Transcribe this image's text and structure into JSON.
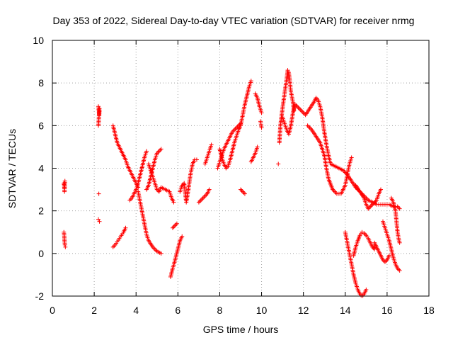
{
  "chart_data": {
    "type": "scatter",
    "title": "Day 353 of 2022, Sidereal Day-to-day VTEC variation (SDTVAR) for receiver nrmg",
    "xlabel": "GPS time / hours",
    "ylabel": "SDTVAR / TECUs",
    "xlim": [
      0,
      18
    ],
    "ylim": [
      -2,
      10
    ],
    "xticks": [
      "0",
      "2",
      "4",
      "6",
      "8",
      "10",
      "12",
      "14",
      "16",
      "18"
    ],
    "yticks": [
      "-2",
      "0",
      "2",
      "4",
      "6",
      "8",
      "10"
    ],
    "grid": true,
    "marker": "+",
    "color": "#ff0000",
    "series": [
      {
        "name": "SDTVAR",
        "points": [
          [
            0.55,
            3.3
          ],
          [
            0.57,
            3.1
          ],
          [
            0.58,
            2.9
          ],
          [
            0.6,
            3.4
          ],
          [
            0.55,
            1.0
          ],
          [
            0.57,
            0.8
          ],
          [
            0.58,
            0.6
          ],
          [
            0.6,
            0.4
          ],
          [
            0.62,
            0.3
          ],
          [
            2.2,
            6.9
          ],
          [
            2.22,
            6.7
          ],
          [
            2.24,
            6.5
          ],
          [
            2.25,
            6.8
          ],
          [
            2.2,
            6.0
          ],
          [
            2.22,
            2.8
          ],
          [
            2.2,
            1.6
          ],
          [
            2.25,
            1.5
          ],
          [
            2.9,
            6.0
          ],
          [
            2.95,
            5.8
          ],
          [
            3.0,
            5.6
          ],
          [
            3.05,
            5.4
          ],
          [
            3.1,
            5.2
          ],
          [
            3.2,
            5.0
          ],
          [
            3.3,
            4.8
          ],
          [
            3.4,
            4.6
          ],
          [
            3.5,
            4.4
          ],
          [
            3.6,
            4.1
          ],
          [
            3.7,
            3.9
          ],
          [
            3.8,
            3.7
          ],
          [
            3.9,
            3.5
          ],
          [
            4.0,
            3.3
          ],
          [
            4.1,
            3.1
          ],
          [
            2.9,
            0.3
          ],
          [
            3.0,
            0.4
          ],
          [
            3.1,
            0.55
          ],
          [
            3.2,
            0.7
          ],
          [
            3.3,
            0.85
          ],
          [
            3.4,
            1.0
          ],
          [
            3.5,
            1.2
          ],
          [
            3.7,
            2.5
          ],
          [
            3.8,
            2.6
          ],
          [
            3.9,
            2.8
          ],
          [
            4.0,
            3.0
          ],
          [
            4.1,
            3.3
          ],
          [
            4.2,
            3.7
          ],
          [
            4.3,
            4.1
          ],
          [
            4.4,
            4.5
          ],
          [
            4.5,
            4.8
          ],
          [
            4.1,
            2.9
          ],
          [
            4.2,
            2.4
          ],
          [
            4.3,
            1.9
          ],
          [
            4.4,
            1.4
          ],
          [
            4.5,
            0.9
          ],
          [
            4.6,
            0.6
          ],
          [
            4.8,
            0.3
          ],
          [
            5.0,
            0.1
          ],
          [
            5.2,
            0.0
          ],
          [
            4.5,
            3.0
          ],
          [
            4.6,
            3.2
          ],
          [
            4.7,
            3.6
          ],
          [
            4.8,
            4.0
          ],
          [
            4.9,
            4.4
          ],
          [
            5.0,
            4.7
          ],
          [
            5.1,
            4.8
          ],
          [
            5.2,
            4.9
          ],
          [
            4.6,
            4.2
          ],
          [
            4.7,
            3.9
          ],
          [
            4.8,
            3.6
          ],
          [
            4.9,
            3.3
          ],
          [
            5.0,
            3.0
          ],
          [
            5.1,
            2.9
          ],
          [
            5.2,
            3.1
          ],
          [
            5.6,
            2.9
          ],
          [
            5.7,
            2.6
          ],
          [
            5.8,
            2.4
          ],
          [
            5.75,
            1.2
          ],
          [
            5.85,
            1.3
          ],
          [
            5.95,
            1.4
          ],
          [
            5.65,
            -1.1
          ],
          [
            5.7,
            -0.9
          ],
          [
            5.75,
            -0.7
          ],
          [
            5.8,
            -0.55
          ],
          [
            6.05,
            0.4
          ],
          [
            6.1,
            0.6
          ],
          [
            6.2,
            0.8
          ],
          [
            6.1,
            2.9
          ],
          [
            6.2,
            3.2
          ],
          [
            6.3,
            3.3
          ],
          [
            6.4,
            2.4
          ],
          [
            6.5,
            3.0
          ],
          [
            6.6,
            3.7
          ],
          [
            6.7,
            4.2
          ],
          [
            6.8,
            4.4
          ],
          [
            6.9,
            4.4
          ],
          [
            7.0,
            2.4
          ],
          [
            7.2,
            2.6
          ],
          [
            7.4,
            2.8
          ],
          [
            7.5,
            3.0
          ],
          [
            7.3,
            4.2
          ],
          [
            7.4,
            4.5
          ],
          [
            7.5,
            4.8
          ],
          [
            7.6,
            5.1
          ],
          [
            7.9,
            4.0
          ],
          [
            8.0,
            4.3
          ],
          [
            8.1,
            4.6
          ],
          [
            8.2,
            4.9
          ],
          [
            8.3,
            5.1
          ],
          [
            8.4,
            5.3
          ],
          [
            8.5,
            5.5
          ],
          [
            8.6,
            5.7
          ],
          [
            8.7,
            5.8
          ],
          [
            8.8,
            5.9
          ],
          [
            8.9,
            6.0
          ],
          [
            9.0,
            6.1
          ],
          [
            8.0,
            4.9
          ],
          [
            8.1,
            4.5
          ],
          [
            8.2,
            4.2
          ],
          [
            8.3,
            4.0
          ],
          [
            8.4,
            4.1
          ],
          [
            8.5,
            4.4
          ],
          [
            8.6,
            4.8
          ],
          [
            8.7,
            5.2
          ],
          [
            8.8,
            5.5
          ],
          [
            8.9,
            5.8
          ],
          [
            9.0,
            6.0
          ],
          [
            9.1,
            6.5
          ],
          [
            9.2,
            7.0
          ],
          [
            9.3,
            7.4
          ],
          [
            9.4,
            7.8
          ],
          [
            9.5,
            8.1
          ],
          [
            9.0,
            3.0
          ],
          [
            9.1,
            2.9
          ],
          [
            9.2,
            2.8
          ],
          [
            9.5,
            4.3
          ],
          [
            9.6,
            4.5
          ],
          [
            9.7,
            4.7
          ],
          [
            9.8,
            5.0
          ],
          [
            9.7,
            7.5
          ],
          [
            9.8,
            7.3
          ],
          [
            9.9,
            6.9
          ],
          [
            10.0,
            6.6
          ],
          [
            9.95,
            6.2
          ],
          [
            10.0,
            5.9
          ],
          [
            10.8,
            4.2
          ],
          [
            10.85,
            5.2
          ],
          [
            10.9,
            6.0
          ],
          [
            11.0,
            6.8
          ],
          [
            11.1,
            7.5
          ],
          [
            11.2,
            8.2
          ],
          [
            11.25,
            8.6
          ],
          [
            11.3,
            8.5
          ],
          [
            11.35,
            8.1
          ],
          [
            11.4,
            7.6
          ],
          [
            11.5,
            7.1
          ],
          [
            11.55,
            6.7
          ],
          [
            11.0,
            6.4
          ],
          [
            11.1,
            6.1
          ],
          [
            11.2,
            5.8
          ],
          [
            11.3,
            5.6
          ],
          [
            11.4,
            6.0
          ],
          [
            11.5,
            6.6
          ],
          [
            11.6,
            7.0
          ],
          [
            12.1,
            6.5
          ],
          [
            12.3,
            6.8
          ],
          [
            12.5,
            7.1
          ],
          [
            12.6,
            7.3
          ],
          [
            12.7,
            7.2
          ],
          [
            12.8,
            6.9
          ],
          [
            12.9,
            6.4
          ],
          [
            13.0,
            5.7
          ],
          [
            13.1,
            5.1
          ],
          [
            13.2,
            4.6
          ],
          [
            13.3,
            4.2
          ],
          [
            13.5,
            4.1
          ],
          [
            13.7,
            4.0
          ],
          [
            13.9,
            3.9
          ],
          [
            14.1,
            3.7
          ],
          [
            14.3,
            3.4
          ],
          [
            14.5,
            3.1
          ],
          [
            14.7,
            2.9
          ],
          [
            14.9,
            2.7
          ],
          [
            15.1,
            2.5
          ],
          [
            15.3,
            2.4
          ],
          [
            15.5,
            2.3
          ],
          [
            15.7,
            2.3
          ],
          [
            15.9,
            2.3
          ],
          [
            16.1,
            2.3
          ],
          [
            16.3,
            2.2
          ],
          [
            16.5,
            2.2
          ],
          [
            16.6,
            2.1
          ],
          [
            12.2,
            6.0
          ],
          [
            12.4,
            5.8
          ],
          [
            12.6,
            5.5
          ],
          [
            12.8,
            5.2
          ],
          [
            13.0,
            4.6
          ],
          [
            13.1,
            4.0
          ],
          [
            13.2,
            3.5
          ],
          [
            13.4,
            3.0
          ],
          [
            13.6,
            2.8
          ],
          [
            13.8,
            2.8
          ],
          [
            14.0,
            3.2
          ],
          [
            14.1,
            3.7
          ],
          [
            14.2,
            4.2
          ],
          [
            14.3,
            4.5
          ],
          [
            14.5,
            3.2
          ],
          [
            14.7,
            2.9
          ],
          [
            14.9,
            2.6
          ],
          [
            15.0,
            2.3
          ],
          [
            15.1,
            2.1
          ],
          [
            15.3,
            2.3
          ],
          [
            15.5,
            2.5
          ],
          [
            15.6,
            2.8
          ],
          [
            15.7,
            3.0
          ],
          [
            14.0,
            1.0
          ],
          [
            14.1,
            0.5
          ],
          [
            14.2,
            0.0
          ],
          [
            14.3,
            -0.5
          ],
          [
            14.4,
            -1.0
          ],
          [
            14.5,
            -1.4
          ],
          [
            14.6,
            -1.7
          ],
          [
            14.7,
            -1.9
          ],
          [
            14.8,
            -2.0
          ],
          [
            14.9,
            -1.9
          ],
          [
            15.0,
            -1.7
          ],
          [
            14.4,
            -0.1
          ],
          [
            14.5,
            0.3
          ],
          [
            14.6,
            0.6
          ],
          [
            14.7,
            0.85
          ],
          [
            14.8,
            1.0
          ],
          [
            14.9,
            0.95
          ],
          [
            15.0,
            0.85
          ],
          [
            15.1,
            0.7
          ],
          [
            15.2,
            0.5
          ],
          [
            15.3,
            0.3
          ],
          [
            15.4,
            0.2
          ],
          [
            15.4,
            0.5
          ],
          [
            15.5,
            0.3
          ],
          [
            15.6,
            0.1
          ],
          [
            15.7,
            -0.1
          ],
          [
            15.8,
            -0.3
          ],
          [
            15.9,
            -0.4
          ],
          [
            16.0,
            -0.3
          ],
          [
            16.1,
            -0.1
          ],
          [
            15.8,
            1.5
          ],
          [
            15.9,
            1.2
          ],
          [
            16.0,
            0.9
          ],
          [
            16.1,
            0.6
          ],
          [
            16.2,
            0.2
          ],
          [
            16.3,
            -0.2
          ],
          [
            16.4,
            -0.5
          ],
          [
            16.5,
            -0.7
          ],
          [
            16.6,
            -0.8
          ],
          [
            16.2,
            2.6
          ],
          [
            16.3,
            2.4
          ],
          [
            16.4,
            2.0
          ],
          [
            16.45,
            1.5
          ],
          [
            16.5,
            1.0
          ],
          [
            16.55,
            0.7
          ],
          [
            16.6,
            0.5
          ]
        ]
      }
    ]
  }
}
